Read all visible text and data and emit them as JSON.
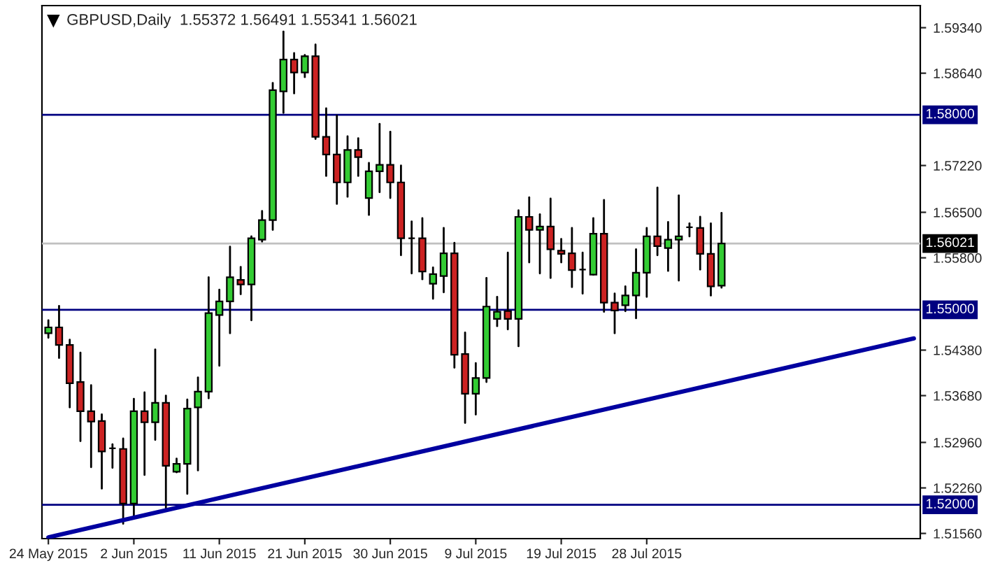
{
  "chart_data": {
    "type": "candlestick",
    "title": "GBPUSD,Daily  1.55372 1.56491 1.55341 1.56021",
    "categories": [
      "24 May 2015",
      null,
      null,
      null,
      null,
      null,
      null,
      null,
      "2 Jun 2015",
      null,
      null,
      null,
      null,
      null,
      null,
      null,
      "11 Jun 2015",
      null,
      null,
      null,
      null,
      null,
      null,
      null,
      "21 Jun 2015",
      null,
      null,
      null,
      null,
      null,
      null,
      null,
      "30 Jun 2015",
      null,
      null,
      null,
      null,
      null,
      null,
      null,
      "9 Jul 2015",
      null,
      null,
      null,
      null,
      null,
      null,
      null,
      "19 Jul 2015",
      null,
      null,
      null,
      null,
      null,
      null,
      null,
      "28 Jul 2015",
      null,
      null,
      null,
      null,
      null,
      null,
      null,
      null,
      null,
      null,
      null,
      null,
      null,
      null,
      null,
      null,
      null,
      null,
      null,
      null,
      null,
      null,
      null,
      null,
      null
    ],
    "ohlc": [
      [
        1.5464,
        1.5484,
        1.5457,
        1.5473
      ],
      [
        1.5473,
        1.5506,
        1.5426,
        1.5446
      ],
      [
        1.5446,
        1.5454,
        1.535,
        1.5387
      ],
      [
        1.5389,
        1.5434,
        1.5298,
        1.5344
      ],
      [
        1.5344,
        1.5384,
        1.5258,
        1.5328
      ],
      [
        1.5329,
        1.5339,
        1.5225,
        1.5282
      ],
      [
        1.5287,
        1.5293,
        1.5257,
        1.5287
      ],
      [
        1.5286,
        1.5302,
        1.5171,
        1.5202
      ],
      [
        1.5202,
        1.5363,
        1.518,
        1.5344
      ],
      [
        1.5344,
        1.5373,
        1.5246,
        1.5327
      ],
      [
        1.5327,
        1.5439,
        1.53,
        1.5357
      ],
      [
        1.5357,
        1.5368,
        1.5192,
        1.526
      ],
      [
        1.5251,
        1.5271,
        1.525,
        1.5263
      ],
      [
        1.5263,
        1.5362,
        1.5217,
        1.5348
      ],
      [
        1.535,
        1.5396,
        1.5253,
        1.5374
      ],
      [
        1.5374,
        1.555,
        1.5364,
        1.5495
      ],
      [
        1.5492,
        1.5531,
        1.5414,
        1.5513
      ],
      [
        1.5513,
        1.5597,
        1.5464,
        1.555
      ],
      [
        1.5546,
        1.5566,
        1.5524,
        1.5539
      ],
      [
        1.5539,
        1.5613,
        1.5484,
        1.561
      ],
      [
        1.5608,
        1.5652,
        1.5605,
        1.5638
      ],
      [
        1.5638,
        1.5849,
        1.5623,
        1.5838
      ],
      [
        1.5836,
        1.5928,
        1.5803,
        1.5885
      ],
      [
        1.5885,
        1.5895,
        1.5833,
        1.5865
      ],
      [
        1.5865,
        1.5892,
        1.5858,
        1.589
      ],
      [
        1.589,
        1.5908,
        1.5763,
        1.5766
      ],
      [
        1.5766,
        1.581,
        1.5706,
        1.5739
      ],
      [
        1.5739,
        1.5799,
        1.5663,
        1.5696
      ],
      [
        1.5696,
        1.5767,
        1.5674,
        1.5746
      ],
      [
        1.5746,
        1.5764,
        1.5706,
        1.5735
      ],
      [
        1.5672,
        1.5726,
        1.5646,
        1.5713
      ],
      [
        1.5713,
        1.5786,
        1.5681,
        1.5723
      ],
      [
        1.5723,
        1.5774,
        1.5672,
        1.5696
      ],
      [
        1.5696,
        1.5722,
        1.5584,
        1.561
      ],
      [
        1.561,
        1.5636,
        1.5556,
        1.561
      ],
      [
        1.561,
        1.5641,
        1.5547,
        1.5559
      ],
      [
        1.554,
        1.5565,
        1.5517,
        1.5555
      ],
      [
        1.5552,
        1.5626,
        1.5527,
        1.5587
      ],
      [
        1.5587,
        1.5603,
        1.5411,
        1.5431
      ],
      [
        1.5432,
        1.5465,
        1.5326,
        1.5371
      ],
      [
        1.5371,
        1.5418,
        1.5339,
        1.5395
      ],
      [
        1.5395,
        1.5549,
        1.5389,
        1.5505
      ],
      [
        1.5486,
        1.552,
        1.5475,
        1.5497
      ],
      [
        1.5498,
        1.5588,
        1.547,
        1.5486
      ],
      [
        1.5486,
        1.5653,
        1.5444,
        1.5643
      ],
      [
        1.5643,
        1.5673,
        1.5573,
        1.5623
      ],
      [
        1.5623,
        1.5647,
        1.5556,
        1.5628
      ],
      [
        1.5628,
        1.5671,
        1.5549,
        1.5593
      ],
      [
        1.5591,
        1.5609,
        1.5573,
        1.5586
      ],
      [
        1.5587,
        1.5626,
        1.5535,
        1.5561
      ],
      [
        1.5562,
        1.5588,
        1.5525,
        1.5562
      ],
      [
        1.5554,
        1.5641,
        1.5554,
        1.5617
      ],
      [
        1.5617,
        1.5669,
        1.5497,
        1.5511
      ],
      [
        1.5511,
        1.5525,
        1.5464,
        1.5499
      ],
      [
        1.5507,
        1.5536,
        1.5498,
        1.5522
      ],
      [
        1.5522,
        1.5593,
        1.5487,
        1.5557
      ],
      [
        1.5557,
        1.5626,
        1.552,
        1.5613
      ],
      [
        1.5613,
        1.5688,
        1.5584,
        1.5598
      ],
      [
        1.5595,
        1.5635,
        1.556,
        1.5608
      ],
      [
        1.5608,
        1.5676,
        1.5545,
        1.5613
      ],
      [
        1.5627,
        1.5633,
        1.5613,
        1.5627
      ],
      [
        1.5626,
        1.5643,
        1.5562,
        1.5586
      ],
      [
        1.5586,
        1.5633,
        1.5522,
        1.5536
      ],
      [
        1.55372,
        1.56491,
        1.55341,
        1.56021
      ],
      null,
      null,
      null,
      null,
      null,
      null,
      null,
      null,
      null,
      null,
      null,
      null,
      null,
      null,
      null,
      null,
      null,
      null
    ],
    "series": [
      {
        "type": "line",
        "values": [
          1.515,
          null,
          null,
          null,
          null,
          null,
          null,
          null,
          null,
          null,
          null,
          null,
          null,
          null,
          null,
          null,
          null,
          null,
          null,
          null,
          null,
          null,
          null,
          null,
          null,
          null,
          null,
          null,
          null,
          null,
          null,
          null,
          null,
          null,
          null,
          null,
          null,
          null,
          null,
          null,
          null,
          null,
          null,
          null,
          null,
          null,
          null,
          null,
          null,
          null,
          null,
          null,
          null,
          null,
          null,
          null,
          null,
          null,
          null,
          null,
          null,
          null,
          null,
          null,
          null,
          null,
          null,
          null,
          null,
          null,
          null,
          null,
          null,
          null,
          null,
          null,
          null,
          null,
          null,
          null,
          null,
          1.5456
        ],
        "color": "#0000a0"
      }
    ],
    "ylim": [
      1.5148,
      1.5968
    ],
    "yticks": [
      {
        "value": 1.5934,
        "label": "1.59340"
      },
      {
        "value": 1.5864,
        "label": "1.58640"
      },
      {
        "value": 1.5722,
        "label": "1.57220"
      },
      {
        "value": 1.565,
        "label": "1.56500"
      },
      {
        "value": 1.558,
        "label": "1.55800"
      },
      {
        "value": 1.5438,
        "label": "1.54380"
      },
      {
        "value": 1.5368,
        "label": "1.53680"
      },
      {
        "value": 1.5296,
        "label": "1.52960"
      },
      {
        "value": 1.5226,
        "label": "1.52260"
      },
      {
        "value": 1.5156,
        "label": "1.51560"
      }
    ],
    "ref_lines": [
      {
        "axis": "y",
        "value": 1.58,
        "label": "1.58000",
        "color": "#000080"
      },
      {
        "axis": "y",
        "value": 1.55,
        "label": "1.55000",
        "color": "#000080"
      },
      {
        "axis": "y",
        "value": 1.52,
        "label": "1.52000",
        "color": "#000080"
      },
      {
        "axis": "y",
        "value": 1.56021,
        "label": "1.56021",
        "color": "#c0c0c0"
      }
    ],
    "grid": false,
    "legend": false
  }
}
